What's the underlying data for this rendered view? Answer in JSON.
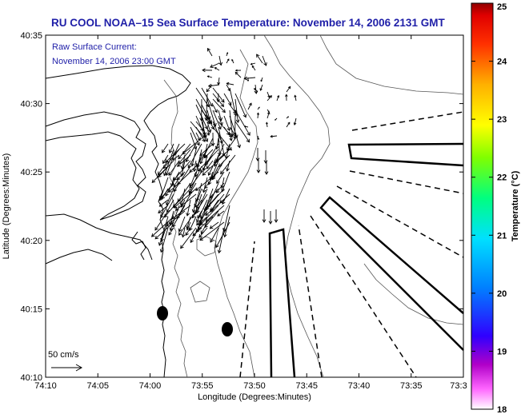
{
  "title": "RU COOL  NOAA–15  Sea Surface Temperature:  November 14, 2006 2131 GMT",
  "current_label_line1": "Raw Surface Current:",
  "current_label_line2": "November 14, 2006 23:00 GMT",
  "scale_label": "50 cm/s",
  "map": {
    "xlabel": "Longitude (Degrees:Minutes)",
    "ylabel": "Latitude (Degrees:Minutes)",
    "xticks": [
      "74:10",
      "74:05",
      "74:00",
      "73:55",
      "73:50",
      "73:45",
      "73:40",
      "73:35",
      "73:3"
    ],
    "yticks": [
      "40:35",
      "40:30",
      "40:25",
      "40:20",
      "40:15",
      "40:10"
    ]
  },
  "colorbar": {
    "label": "Temperature (°C)",
    "min": 18,
    "max": 25,
    "ticks": [
      "25",
      "24",
      "23",
      "22",
      "21",
      "20",
      "19",
      "18"
    ]
  }
}
